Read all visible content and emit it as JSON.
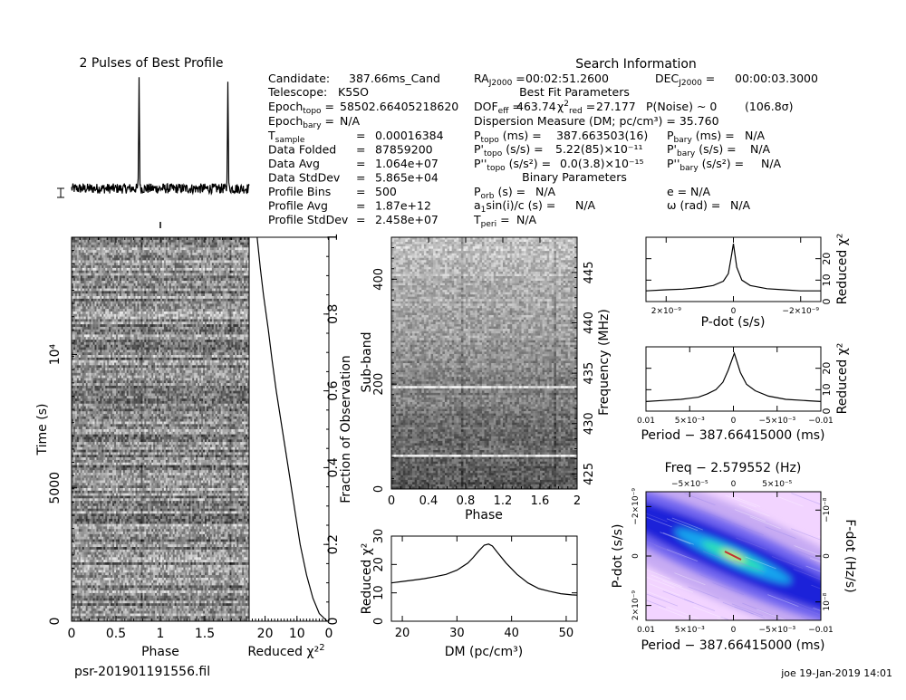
{
  "header": {
    "profile_title": "2 Pulses of Best Profile",
    "search_title": "Search Information",
    "best_fit_title": "Best Fit Parameters",
    "binary_title": "Binary Parameters"
  },
  "info": {
    "candidate_label": "Candidate:",
    "candidate_value": "387.66ms_Cand",
    "telescope_label": "Telescope:",
    "telescope_value": "K5SO",
    "epoch_topo": "58502.66405218620",
    "epoch_bary": "N/A",
    "stats": [
      {
        "label": "T_sample",
        "value": "0.00016384"
      },
      {
        "label": "Data Folded",
        "value": "87859200"
      },
      {
        "label": "Data Avg",
        "value": "1.064e+07"
      },
      {
        "label": "Data StdDev",
        "value": "5.865e+04"
      },
      {
        "label": "Profile Bins",
        "value": "500"
      },
      {
        "label": "Profile Avg",
        "value": "1.87e+12"
      },
      {
        "label": "Profile StdDev",
        "value": "2.458e+07"
      }
    ],
    "ra": "00:02:51.2600",
    "dec": "00:00:03.3000",
    "dof_eff": "463.74",
    "chi2_red": "27.177",
    "p_noise": "P(Noise) ~ 0",
    "sigma": "(106.8σ)",
    "dm_label": "Dispersion Measure (DM; pc/cm³) = 35.760",
    "p_topo": "387.663503(16)",
    "p_bary": "N/A",
    "pdot_topo": "5.22(85)×10⁻¹¹",
    "pdot_bary": "N/A",
    "pddot_topo": "0.0(3.8)×10⁻¹⁵",
    "pddot_bary": "N/A",
    "p_orb": "N/A",
    "e": "N/A",
    "a1": "N/A",
    "omega": "N/A",
    "t_peri": "N/A"
  },
  "footer": {
    "filename": "psr-201901191556.fil",
    "stamp": "joe 19-Jan-2019 14:01"
  },
  "chart_data": [
    {
      "type": "line",
      "name": "profile",
      "title": "2 Pulses of Best Profile",
      "x_range": [
        0,
        2
      ],
      "y_range": [
        0,
        1
      ],
      "peaks": [
        0.76,
        1.76
      ],
      "baseline": 0.12,
      "noise": 0.04
    },
    {
      "type": "heatmap",
      "name": "time-phase",
      "xlabel": "Phase",
      "ylabel": "Time (s)",
      "x_range": [
        0,
        2
      ],
      "y_range": [
        0,
        14400
      ],
      "x_ticks": [
        0,
        0.5,
        1,
        1.5
      ],
      "x_tick_labels": [
        "0",
        "0.5",
        "1",
        "1.5"
      ],
      "y_ticks": [
        0,
        5000,
        10000
      ],
      "y_tick_labels": [
        "0",
        "5000",
        "10⁴"
      ]
    },
    {
      "type": "line",
      "name": "time-chi2",
      "xlabel": "Reduced χ²",
      "ylabel": "Fraction of Observation",
      "x_range": [
        25,
        0
      ],
      "y_range": [
        0,
        1
      ],
      "x_ticks": [
        20,
        10,
        0
      ],
      "x_tick_labels": [
        "20",
        "10",
        "0"
      ],
      "y_ticks": [
        0,
        0.2,
        0.4,
        0.6,
        0.8,
        1
      ],
      "y_tick_labels": [
        "0",
        "0.2",
        "0.4",
        "0.6",
        "0.8",
        "1"
      ],
      "x": [
        0.5,
        3,
        5,
        7,
        9,
        10.5,
        12,
        13.5,
        15,
        16.5,
        17.8,
        19,
        20.5,
        21.5,
        22.5
      ],
      "y": [
        0,
        0.02,
        0.06,
        0.12,
        0.2,
        0.28,
        0.36,
        0.44,
        0.52,
        0.6,
        0.68,
        0.76,
        0.85,
        0.92,
        1.0
      ]
    },
    {
      "type": "heatmap",
      "name": "subband-phase",
      "xlabel": "Phase",
      "ylabel": "Sub-band",
      "y2label": "Frequency (MHz)",
      "x_range": [
        0,
        2
      ],
      "y_range": [
        0,
        480
      ],
      "y2_range": [
        423.5,
        448.5
      ],
      "x_ticks": [
        0,
        0.4,
        0.8,
        1.2,
        1.6,
        2
      ],
      "x_tick_labels": [
        "0",
        "0.4",
        "0.8",
        "1.2",
        "1.6",
        "2"
      ],
      "y_ticks": [
        0,
        200,
        400
      ],
      "y_tick_labels": [
        "0",
        "200",
        "400"
      ],
      "y2_ticks": [
        425,
        430,
        435,
        440,
        445
      ],
      "y2_tick_labels": [
        "425",
        "430",
        "435",
        "440",
        "445"
      ]
    },
    {
      "type": "line",
      "name": "dm-chi2",
      "xlabel": "DM (pc/cm³)",
      "ylabel": "Reduced χ²",
      "x_range": [
        18,
        52
      ],
      "y_range": [
        0,
        30
      ],
      "x_ticks": [
        20,
        30,
        40,
        50
      ],
      "x_tick_labels": [
        "20",
        "30",
        "40",
        "50"
      ],
      "y_ticks": [
        0,
        10,
        20,
        30
      ],
      "y_tick_labels": [
        "0",
        "10",
        "20",
        "30"
      ],
      "x": [
        18,
        20,
        22,
        24,
        26,
        28,
        30,
        32,
        33,
        34,
        35,
        35.8,
        36.5,
        37.5,
        39,
        41,
        43,
        45,
        47,
        49,
        51,
        52
      ],
      "y": [
        13.5,
        14,
        14.5,
        15,
        15.7,
        16.5,
        18,
        20.5,
        22.5,
        24.8,
        26.8,
        27.2,
        26.5,
        24,
        20.5,
        16.5,
        13.5,
        11.5,
        10.5,
        9.7,
        9.3,
        9.2
      ]
    },
    {
      "type": "line",
      "name": "pdot-chi2",
      "xlabel": "P-dot (s/s)",
      "ylabel": "Reduced χ²",
      "x_range": [
        2.6e-09,
        -2.6e-09
      ],
      "y_range": [
        0,
        30
      ],
      "x_ticks": [
        2e-09,
        0,
        -2e-09
      ],
      "x_tick_labels": [
        "2×10⁻⁹",
        "0",
        "−2×10⁻⁹"
      ],
      "y_ticks": [
        0,
        10,
        20
      ],
      "y_tick_labels": [
        "0",
        "10",
        "20"
      ],
      "x": [
        2.6e-09,
        2e-09,
        1.5e-09,
        1e-09,
        6e-10,
        3e-10,
        1.5e-10,
        5e-11,
        0,
        -1e-10,
        -2.5e-10,
        -5e-10,
        -1e-09,
        -1.5e-09,
        -2e-09,
        -2.6e-09
      ],
      "y": [
        5,
        5.5,
        5.8,
        6.5,
        7.5,
        9.5,
        13,
        22,
        27,
        16,
        10,
        7.5,
        6,
        5.5,
        5,
        5
      ]
    },
    {
      "type": "line",
      "name": "period-chi2",
      "xlabel": "Period − 387.66415000 (ms)",
      "ylabel": "Reduced χ²",
      "x_range": [
        0.01,
        -0.01
      ],
      "y_range": [
        0,
        30
      ],
      "x_ticks": [
        0.01,
        0.005,
        0,
        -0.005,
        -0.01
      ],
      "x_tick_labels": [
        "0.01",
        "5×10⁻³",
        "0",
        "−5×10⁻³",
        "−0.01"
      ],
      "y_ticks": [
        0,
        10,
        20
      ],
      "y_tick_labels": [
        "0",
        "10",
        "20"
      ],
      "x": [
        0.01,
        0.008,
        0.006,
        0.004,
        0.003,
        0.002,
        0.0012,
        0.0006,
        -0.0001,
        -0.0008,
        -0.0015,
        -0.0025,
        -0.004,
        -0.006,
        -0.008,
        -0.01
      ],
      "y": [
        4.5,
        5,
        5.5,
        6.5,
        8,
        10,
        13.5,
        19,
        27,
        18,
        12.5,
        9.5,
        7,
        5.5,
        5,
        4.5
      ]
    },
    {
      "type": "heatmap",
      "name": "period-pdot",
      "title": "Freq − 2.579552 (Hz)",
      "xlabel": "Period − 387.66415000 (ms)",
      "ylabel": "P-dot (s/s)",
      "y2label": "F-dot (Hz/s)",
      "x_range": [
        0.01,
        -0.01
      ],
      "y_range": [
        2.6e-09,
        -2.6e-09
      ],
      "x_ticks": [
        0.01,
        0.005,
        0,
        -0.005,
        -0.01
      ],
      "x_tick_labels": [
        "0.01",
        "5×10⁻³",
        "0",
        "−5×10⁻³",
        "−0.01"
      ],
      "top_ticks": [
        -5e-05,
        0,
        5e-05
      ],
      "top_tick_labels": [
        "−5×10⁻⁵",
        "0",
        "5×10⁻⁵"
      ],
      "y_ticks": [
        2e-09,
        0,
        -2e-09
      ],
      "y_tick_labels": [
        "2×10⁻⁹",
        "0",
        "−2×10⁻⁹"
      ],
      "y2_ticks": [
        -1e-08,
        0,
        1e-08
      ],
      "y2_tick_labels": [
        "−10⁻⁸",
        "0",
        "10⁻⁸"
      ],
      "colors": [
        "#f2d4ff",
        "#c2a6f2",
        "#6f63f0",
        "#1d24d9",
        "#18a6ee",
        "#2fe3b2",
        "#d8ec42"
      ]
    }
  ]
}
